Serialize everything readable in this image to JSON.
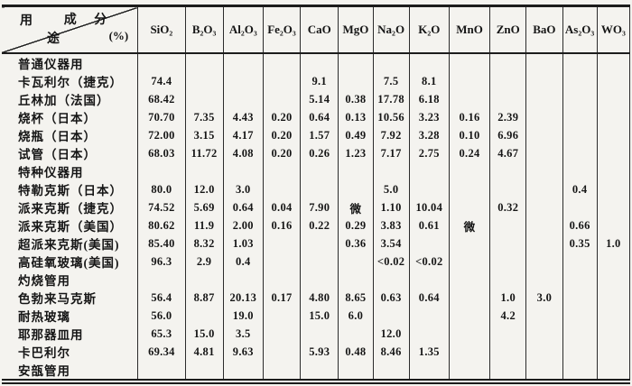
{
  "table": {
    "corner": {
      "usage_char_1": "用",
      "usage_char_2": "途",
      "composition_label": "成 分",
      "unit_label": "(%)"
    },
    "columns": [
      "SiO₂",
      "B₂O₃",
      "Al₂O₃",
      "Fe₂O₃",
      "CaO",
      "MgO",
      "Na₂O",
      "K₂O",
      "MnO",
      "ZnO",
      "BaO",
      "As₂O₃",
      "WO₃"
    ],
    "rows": [
      {
        "label": "普通仪器用",
        "values": [
          "",
          "",
          "",
          "",
          "",
          "",
          "",
          "",
          "",
          "",
          "",
          "",
          ""
        ]
      },
      {
        "label": "卡瓦利尔（捷克）",
        "values": [
          "74.4",
          "",
          "",
          "",
          "9.1",
          "",
          "7.5",
          "8.1",
          "",
          "",
          "",
          "",
          ""
        ]
      },
      {
        "label": "丘林加（法国）",
        "values": [
          "68.42",
          "",
          "",
          "",
          "5.14",
          "0.38",
          "17.78",
          "6.18",
          "",
          "",
          "",
          "",
          ""
        ]
      },
      {
        "label": "烧杯（日本）",
        "values": [
          "70.70",
          "7.35",
          "4.43",
          "0.20",
          "0.64",
          "0.13",
          "10.56",
          "3.23",
          "0.16",
          "2.39",
          "",
          "",
          ""
        ]
      },
      {
        "label": "烧瓶（日本）",
        "values": [
          "72.00",
          "3.15",
          "4.17",
          "0.20",
          "1.57",
          "0.49",
          "7.92",
          "3.28",
          "0.10",
          "6.96",
          "",
          "",
          ""
        ]
      },
      {
        "label": "试管（日本）",
        "values": [
          "68.03",
          "11.72",
          "4.08",
          "0.20",
          "0.26",
          "1.23",
          "7.17",
          "2.75",
          "0.24",
          "4.67",
          "",
          "",
          ""
        ]
      },
      {
        "label": "特种仪器用",
        "values": [
          "",
          "",
          "",
          "",
          "",
          "",
          "",
          "",
          "",
          "",
          "",
          "",
          ""
        ]
      },
      {
        "label": "特勒克斯（日本）",
        "values": [
          "80.0",
          "12.0",
          "3.0",
          "",
          "",
          "",
          "5.0",
          "",
          "",
          "",
          "",
          "0.4",
          ""
        ]
      },
      {
        "label": "派来克斯（捷克）",
        "values": [
          "74.52",
          "5.69",
          "0.64",
          "0.04",
          "7.90",
          "微",
          "1.10",
          "10.04",
          "",
          "0.32",
          "",
          "",
          ""
        ]
      },
      {
        "label": "派来克斯（美国）",
        "values": [
          "80.62",
          "11.9",
          "2.00",
          "0.16",
          "0.22",
          "0.29",
          "3.83",
          "0.61",
          "微",
          "",
          "",
          "0.66",
          ""
        ]
      },
      {
        "label": "超派来克斯(美国)",
        "values": [
          "85.40",
          "8.32",
          "1.03",
          "",
          "",
          "0.36",
          "3.54",
          "",
          "",
          "",
          "",
          "0.35",
          "1.0"
        ]
      },
      {
        "label": "高硅氧玻璃(美国)",
        "values": [
          "96.3",
          "2.9",
          "0.4",
          "",
          "",
          "",
          "<0.02",
          "<0.02",
          "",
          "",
          "",
          "",
          ""
        ]
      },
      {
        "label": "灼烧管用",
        "values": [
          "",
          "",
          "",
          "",
          "",
          "",
          "",
          "",
          "",
          "",
          "",
          "",
          ""
        ]
      },
      {
        "label": "色勃来马克斯",
        "values": [
          "56.4",
          "8.87",
          "20.13",
          "0.17",
          "4.80",
          "8.65",
          "0.63",
          "0.64",
          "",
          "1.0",
          "3.0",
          "",
          ""
        ]
      },
      {
        "label": "耐热玻璃",
        "values": [
          "56.0",
          "",
          "19.0",
          "",
          "15.0",
          "6.0",
          "",
          "",
          "",
          "4.2",
          "",
          "",
          ""
        ]
      },
      {
        "label": "耶那器皿用",
        "values": [
          "65.3",
          "15.0",
          "3.5",
          "",
          "",
          "",
          "12.0",
          "",
          "",
          "",
          "",
          "",
          ""
        ]
      },
      {
        "label": "卡巴利尔",
        "values": [
          "69.34",
          "4.81",
          "9.63",
          "",
          "5.93",
          "0.48",
          "8.46",
          "1.35",
          "",
          "",
          "",
          "",
          ""
        ]
      },
      {
        "label": "安瓿管用",
        "values": [
          "",
          "",
          "",
          "",
          "",
          "",
          "",
          "",
          "",
          "",
          "",
          "",
          ""
        ]
      }
    ]
  }
}
